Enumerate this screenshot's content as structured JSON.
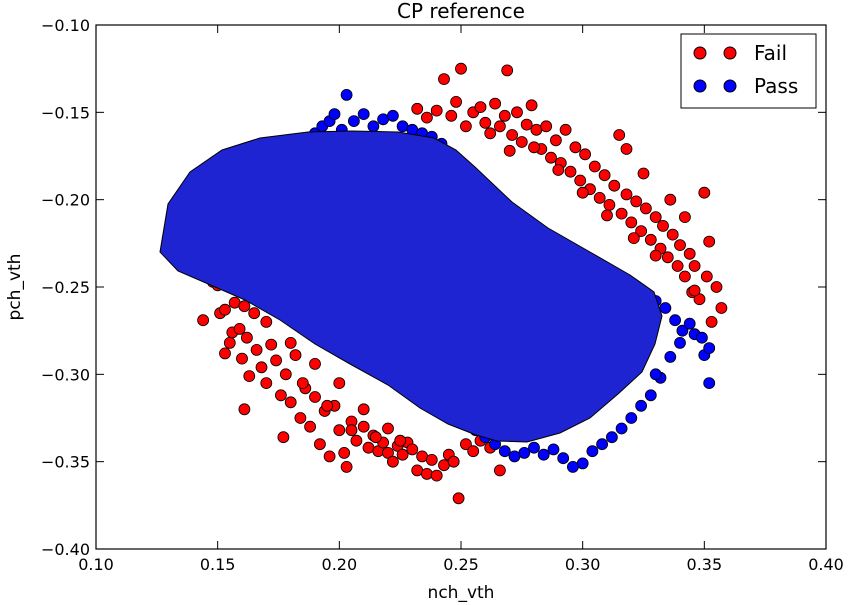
{
  "chart_data": {
    "type": "scatter",
    "title": "CP reference",
    "xlabel": "nch_vth",
    "ylabel": "pch_vth",
    "xlim": [
      0.1,
      0.4
    ],
    "ylim": [
      -0.4,
      -0.1
    ],
    "xticks": [
      0.1,
      0.15,
      0.2,
      0.25,
      0.3,
      0.35,
      0.4
    ],
    "xtick_labels": [
      "0.10",
      "0.15",
      "0.20",
      "0.25",
      "0.30",
      "0.35",
      "0.40"
    ],
    "yticks": [
      -0.4,
      -0.35,
      -0.3,
      -0.25,
      -0.2,
      -0.15,
      -0.1
    ],
    "ytick_labels": [
      "−0.40",
      "−0.35",
      "−0.30",
      "−0.25",
      "−0.20",
      "−0.15",
      "−0.10"
    ],
    "grid": false,
    "legend_position": "top-right",
    "series": [
      {
        "name": "Fail",
        "color": "#ff0000",
        "points": [
          [
            0.14,
            -0.222
          ],
          [
            0.143,
            -0.237
          ],
          [
            0.144,
            -0.269
          ],
          [
            0.148,
            -0.247
          ],
          [
            0.15,
            -0.249
          ],
          [
            0.151,
            -0.265
          ],
          [
            0.153,
            -0.263
          ],
          [
            0.153,
            -0.288
          ],
          [
            0.155,
            -0.282
          ],
          [
            0.156,
            -0.276
          ],
          [
            0.157,
            -0.259
          ],
          [
            0.158,
            -0.243
          ],
          [
            0.159,
            -0.274
          ],
          [
            0.16,
            -0.291
          ],
          [
            0.161,
            -0.261
          ],
          [
            0.161,
            -0.32
          ],
          [
            0.162,
            -0.279
          ],
          [
            0.163,
            -0.301
          ],
          [
            0.164,
            -0.253
          ],
          [
            0.166,
            -0.286
          ],
          [
            0.168,
            -0.296
          ],
          [
            0.17,
            -0.305
          ],
          [
            0.172,
            -0.283
          ],
          [
            0.174,
            -0.292
          ],
          [
            0.176,
            -0.312
          ],
          [
            0.177,
            -0.336
          ],
          [
            0.178,
            -0.3
          ],
          [
            0.18,
            -0.316
          ],
          [
            0.182,
            -0.289
          ],
          [
            0.184,
            -0.325
          ],
          [
            0.186,
            -0.308
          ],
          [
            0.188,
            -0.33
          ],
          [
            0.19,
            -0.313
          ],
          [
            0.192,
            -0.34
          ],
          [
            0.194,
            -0.321
          ],
          [
            0.196,
            -0.347
          ],
          [
            0.198,
            -0.318
          ],
          [
            0.2,
            -0.332
          ],
          [
            0.202,
            -0.345
          ],
          [
            0.203,
            -0.353
          ],
          [
            0.205,
            -0.327
          ],
          [
            0.207,
            -0.338
          ],
          [
            0.21,
            -0.33
          ],
          [
            0.212,
            -0.342
          ],
          [
            0.214,
            -0.335
          ],
          [
            0.216,
            -0.344
          ],
          [
            0.218,
            -0.339
          ],
          [
            0.22,
            -0.345
          ],
          [
            0.222,
            -0.35
          ],
          [
            0.224,
            -0.341
          ],
          [
            0.226,
            -0.346
          ],
          [
            0.228,
            -0.339
          ],
          [
            0.23,
            -0.343
          ],
          [
            0.232,
            -0.355
          ],
          [
            0.234,
            -0.347
          ],
          [
            0.236,
            -0.357
          ],
          [
            0.238,
            -0.349
          ],
          [
            0.24,
            -0.358
          ],
          [
            0.243,
            -0.352
          ],
          [
            0.245,
            -0.346
          ],
          [
            0.247,
            -0.35
          ],
          [
            0.249,
            -0.371
          ],
          [
            0.252,
            -0.34
          ],
          [
            0.255,
            -0.344
          ],
          [
            0.258,
            -0.338
          ],
          [
            0.262,
            -0.342
          ],
          [
            0.266,
            -0.355
          ],
          [
            0.232,
            -0.148
          ],
          [
            0.236,
            -0.153
          ],
          [
            0.24,
            -0.149
          ],
          [
            0.243,
            -0.131
          ],
          [
            0.246,
            -0.152
          ],
          [
            0.248,
            -0.144
          ],
          [
            0.25,
            -0.125
          ],
          [
            0.252,
            -0.158
          ],
          [
            0.255,
            -0.15
          ],
          [
            0.258,
            -0.147
          ],
          [
            0.26,
            -0.156
          ],
          [
            0.262,
            -0.162
          ],
          [
            0.264,
            -0.145
          ],
          [
            0.266,
            -0.158
          ],
          [
            0.268,
            -0.152
          ],
          [
            0.269,
            -0.126
          ],
          [
            0.271,
            -0.163
          ],
          [
            0.273,
            -0.15
          ],
          [
            0.275,
            -0.167
          ],
          [
            0.277,
            -0.157
          ],
          [
            0.279,
            -0.146
          ],
          [
            0.281,
            -0.16
          ],
          [
            0.283,
            -0.171
          ],
          [
            0.285,
            -0.158
          ],
          [
            0.287,
            -0.176
          ],
          [
            0.289,
            -0.166
          ],
          [
            0.291,
            -0.179
          ],
          [
            0.293,
            -0.16
          ],
          [
            0.295,
            -0.184
          ],
          [
            0.297,
            -0.17
          ],
          [
            0.299,
            -0.189
          ],
          [
            0.301,
            -0.174
          ],
          [
            0.303,
            -0.194
          ],
          [
            0.305,
            -0.181
          ],
          [
            0.307,
            -0.199
          ],
          [
            0.309,
            -0.186
          ],
          [
            0.311,
            -0.203
          ],
          [
            0.313,
            -0.192
          ],
          [
            0.315,
            -0.163
          ],
          [
            0.316,
            -0.208
          ],
          [
            0.318,
            -0.197
          ],
          [
            0.32,
            -0.213
          ],
          [
            0.322,
            -0.201
          ],
          [
            0.324,
            -0.218
          ],
          [
            0.326,
            -0.205
          ],
          [
            0.328,
            -0.223
          ],
          [
            0.33,
            -0.21
          ],
          [
            0.332,
            -0.228
          ],
          [
            0.333,
            -0.215
          ],
          [
            0.335,
            -0.233
          ],
          [
            0.337,
            -0.22
          ],
          [
            0.339,
            -0.238
          ],
          [
            0.34,
            -0.226
          ],
          [
            0.342,
            -0.244
          ],
          [
            0.344,
            -0.231
          ],
          [
            0.345,
            -0.253
          ],
          [
            0.346,
            -0.238
          ],
          [
            0.348,
            -0.257
          ],
          [
            0.35,
            -0.196
          ],
          [
            0.351,
            -0.244
          ],
          [
            0.352,
            -0.224
          ],
          [
            0.353,
            -0.27
          ],
          [
            0.355,
            -0.25
          ],
          [
            0.357,
            -0.262
          ],
          [
            0.336,
            -0.2
          ],
          [
            0.325,
            -0.185
          ],
          [
            0.318,
            -0.171
          ],
          [
            0.33,
            -0.232
          ],
          [
            0.321,
            -0.222
          ],
          [
            0.31,
            -0.209
          ],
          [
            0.3,
            -0.196
          ],
          [
            0.29,
            -0.183
          ],
          [
            0.28,
            -0.17
          ],
          [
            0.27,
            -0.172
          ],
          [
            0.342,
            -0.21
          ],
          [
            0.346,
            -0.252
          ],
          [
            0.22,
            -0.331
          ],
          [
            0.21,
            -0.32
          ],
          [
            0.2,
            -0.305
          ],
          [
            0.19,
            -0.294
          ],
          [
            0.18,
            -0.282
          ],
          [
            0.17,
            -0.27
          ],
          [
            0.165,
            -0.265
          ],
          [
            0.185,
            -0.305
          ],
          [
            0.195,
            -0.318
          ],
          [
            0.205,
            -0.332
          ],
          [
            0.215,
            -0.336
          ],
          [
            0.225,
            -0.338
          ]
        ]
      },
      {
        "name": "Pass",
        "color": "#0000ff",
        "points": [
          [
            0.15,
            -0.23
          ],
          [
            0.152,
            -0.226
          ],
          [
            0.153,
            -0.237
          ],
          [
            0.155,
            -0.215
          ],
          [
            0.157,
            -0.212
          ],
          [
            0.159,
            -0.207
          ],
          [
            0.161,
            -0.203
          ],
          [
            0.163,
            -0.198
          ],
          [
            0.166,
            -0.193
          ],
          [
            0.169,
            -0.19
          ],
          [
            0.172,
            -0.186
          ],
          [
            0.175,
            -0.181
          ],
          [
            0.178,
            -0.177
          ],
          [
            0.181,
            -0.173
          ],
          [
            0.184,
            -0.17
          ],
          [
            0.187,
            -0.165
          ],
          [
            0.19,
            -0.162
          ],
          [
            0.193,
            -0.158
          ],
          [
            0.196,
            -0.155
          ],
          [
            0.198,
            -0.151
          ],
          [
            0.201,
            -0.16
          ],
          [
            0.203,
            -0.14
          ],
          [
            0.206,
            -0.155
          ],
          [
            0.21,
            -0.151
          ],
          [
            0.214,
            -0.158
          ],
          [
            0.218,
            -0.154
          ],
          [
            0.222,
            -0.152
          ],
          [
            0.226,
            -0.158
          ],
          [
            0.23,
            -0.16
          ],
          [
            0.234,
            -0.162
          ],
          [
            0.238,
            -0.164
          ],
          [
            0.242,
            -0.168
          ],
          [
            0.246,
            -0.175
          ],
          [
            0.25,
            -0.181
          ],
          [
            0.254,
            -0.187
          ],
          [
            0.258,
            -0.193
          ],
          [
            0.262,
            -0.199
          ],
          [
            0.266,
            -0.205
          ],
          [
            0.27,
            -0.211
          ],
          [
            0.274,
            -0.217
          ],
          [
            0.278,
            -0.223
          ],
          [
            0.282,
            -0.229
          ],
          [
            0.286,
            -0.235
          ],
          [
            0.29,
            -0.241
          ],
          [
            0.294,
            -0.247
          ],
          [
            0.298,
            -0.253
          ],
          [
            0.302,
            -0.259
          ],
          [
            0.306,
            -0.262
          ],
          [
            0.31,
            -0.265
          ],
          [
            0.314,
            -0.268
          ],
          [
            0.318,
            -0.27
          ],
          [
            0.322,
            -0.266
          ],
          [
            0.326,
            -0.262
          ],
          [
            0.33,
            -0.258
          ],
          [
            0.334,
            -0.262
          ],
          [
            0.338,
            -0.269
          ],
          [
            0.341,
            -0.275
          ],
          [
            0.344,
            -0.271
          ],
          [
            0.346,
            -0.277
          ],
          [
            0.349,
            -0.279
          ],
          [
            0.35,
            -0.289
          ],
          [
            0.352,
            -0.285
          ],
          [
            0.352,
            -0.305
          ],
          [
            0.34,
            -0.282
          ],
          [
            0.336,
            -0.29
          ],
          [
            0.332,
            -0.302
          ],
          [
            0.328,
            -0.312
          ],
          [
            0.324,
            -0.318
          ],
          [
            0.32,
            -0.325
          ],
          [
            0.316,
            -0.331
          ],
          [
            0.312,
            -0.336
          ],
          [
            0.308,
            -0.34
          ],
          [
            0.304,
            -0.344
          ],
          [
            0.3,
            -0.351
          ],
          [
            0.296,
            -0.353
          ],
          [
            0.292,
            -0.348
          ],
          [
            0.288,
            -0.343
          ],
          [
            0.284,
            -0.346
          ],
          [
            0.28,
            -0.342
          ],
          [
            0.276,
            -0.345
          ],
          [
            0.272,
            -0.347
          ],
          [
            0.268,
            -0.344
          ],
          [
            0.264,
            -0.34
          ],
          [
            0.26,
            -0.336
          ],
          [
            0.256,
            -0.332
          ],
          [
            0.252,
            -0.327
          ],
          [
            0.248,
            -0.322
          ],
          [
            0.244,
            -0.316
          ],
          [
            0.24,
            -0.31
          ],
          [
            0.236,
            -0.304
          ],
          [
            0.232,
            -0.298
          ],
          [
            0.228,
            -0.292
          ],
          [
            0.224,
            -0.286
          ],
          [
            0.22,
            -0.28
          ],
          [
            0.216,
            -0.274
          ],
          [
            0.212,
            -0.268
          ],
          [
            0.208,
            -0.262
          ],
          [
            0.204,
            -0.256
          ],
          [
            0.2,
            -0.25
          ],
          [
            0.196,
            -0.244
          ],
          [
            0.192,
            -0.238
          ],
          [
            0.188,
            -0.232
          ],
          [
            0.184,
            -0.226
          ],
          [
            0.18,
            -0.22
          ],
          [
            0.176,
            -0.214
          ],
          [
            0.172,
            -0.208
          ],
          [
            0.168,
            -0.244
          ],
          [
            0.165,
            -0.24
          ],
          [
            0.162,
            -0.236
          ],
          [
            0.2,
            -0.2
          ],
          [
            0.21,
            -0.21
          ],
          [
            0.22,
            -0.22
          ],
          [
            0.23,
            -0.23
          ],
          [
            0.24,
            -0.24
          ],
          [
            0.25,
            -0.25
          ],
          [
            0.26,
            -0.26
          ],
          [
            0.27,
            -0.27
          ],
          [
            0.28,
            -0.28
          ],
          [
            0.29,
            -0.29
          ],
          [
            0.3,
            -0.3
          ],
          [
            0.22,
            -0.19
          ],
          [
            0.24,
            -0.2
          ],
          [
            0.26,
            -0.23
          ],
          [
            0.28,
            -0.25
          ],
          [
            0.3,
            -0.27
          ],
          [
            0.32,
            -0.29
          ],
          [
            0.2,
            -0.23
          ],
          [
            0.22,
            -0.25
          ],
          [
            0.24,
            -0.27
          ],
          [
            0.26,
            -0.29
          ],
          [
            0.28,
            -0.31
          ],
          [
            0.3,
            -0.32
          ],
          [
            0.19,
            -0.19
          ],
          [
            0.21,
            -0.175
          ],
          [
            0.23,
            -0.185
          ],
          [
            0.25,
            -0.21
          ],
          [
            0.27,
            -0.24
          ],
          [
            0.29,
            -0.265
          ],
          [
            0.31,
            -0.29
          ],
          [
            0.33,
            -0.3
          ]
        ]
      }
    ]
  }
}
